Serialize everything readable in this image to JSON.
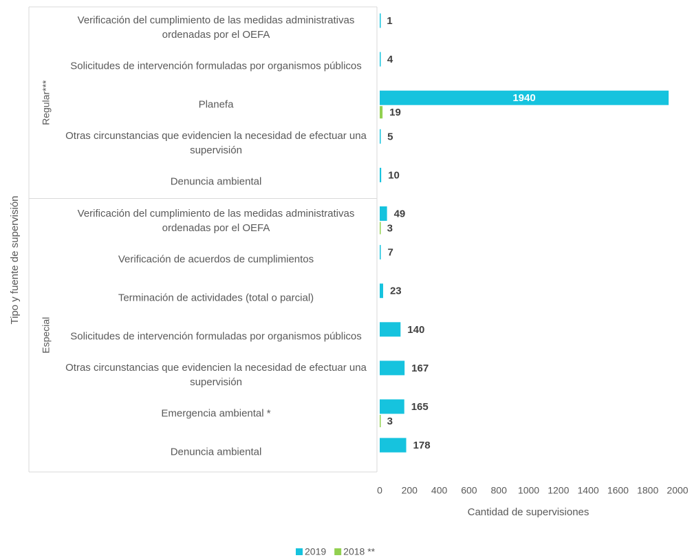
{
  "chart_data": {
    "type": "bar",
    "orientation": "horizontal",
    "x_label": "Cantidad de supervisiones",
    "y_label": "Tipo y fuente de supervisión",
    "groups": [
      {
        "name": "Regular***",
        "categories": [
          "Verificación del cumplimiento de las medidas administrativas ordenadas por el OEFA",
          "Solicitudes de intervención formuladas por organismos públicos",
          "Planefa",
          "Otras circunstancias que evidencien la necesidad de efectuar una supervisión",
          "Denuncia ambiental"
        ]
      },
      {
        "name": "Especial",
        "categories": [
          "Verificación del cumplimiento de las medidas administrativas ordenadas por el OEFA",
          "Verificación de acuerdos de cumplimientos",
          "Terminación de actividades (total o parcial)",
          "Solicitudes de intervención formuladas por organismos públicos",
          "Otras circunstancias que evidencien la necesidad de efectuar una supervisión",
          "Emergencia ambiental *",
          "Denuncia ambiental"
        ]
      }
    ],
    "series": [
      {
        "name": "2019",
        "color": "#16c3de",
        "values": [
          1,
          4,
          1940,
          5,
          10,
          49,
          7,
          23,
          140,
          167,
          165,
          178
        ]
      },
      {
        "name": "2018 **",
        "color": "#92d050",
        "values": [
          null,
          null,
          19,
          null,
          null,
          3,
          null,
          null,
          null,
          null,
          3,
          null
        ]
      }
    ],
    "xlim": [
      0,
      2000
    ],
    "xticks": [
      0,
      200,
      400,
      600,
      800,
      1000,
      1200,
      1400,
      1600,
      1800,
      2000
    ],
    "legend": "bottom"
  }
}
